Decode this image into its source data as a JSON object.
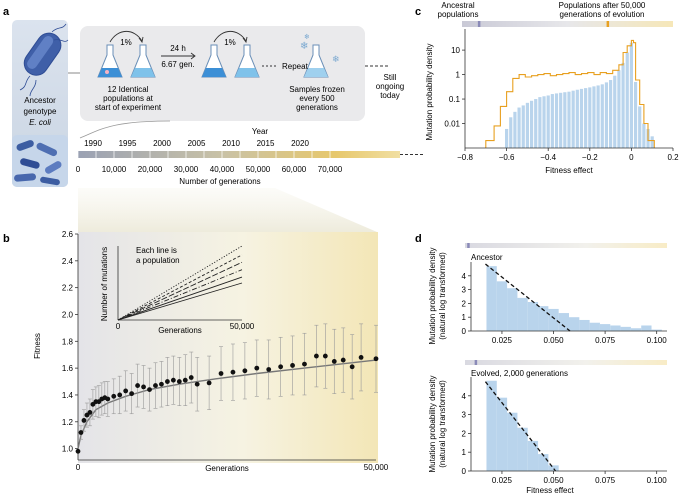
{
  "panels": {
    "a": {
      "label": "a",
      "ancestor_label_1": "Ancestor",
      "ancestor_label_2": "genotype",
      "ancestor_label_3": "E. coli",
      "transfer_percent_1": "1%",
      "transfer_percent_2": "1%",
      "time": "24 h",
      "generations_per_day": "6.67 gen.",
      "populations_1": "12 Identical",
      "populations_2": "populations at",
      "populations_3": "start of experiment",
      "repeat": "Repeat",
      "samples_1": "Samples frozen",
      "samples_2": "every 500",
      "samples_3": "generations",
      "ongoing_1": "Still",
      "ongoing_2": "ongoing",
      "ongoing_3": "today",
      "timeline": {
        "year_title": "Year",
        "years": [
          "1990",
          "1995",
          "2000",
          "2005",
          "2010",
          "2015",
          "2020"
        ],
        "generations": [
          "0",
          "10,000",
          "20,000",
          "30,000",
          "40,000",
          "50,000",
          "60,000",
          "70,000"
        ],
        "xlabel": "Number of generations"
      }
    },
    "c": {
      "label": "c",
      "header_left_1": "Ancestral",
      "header_left_2": "populations",
      "header_right_1": "Populations after 50,000",
      "header_right_2": "generations of evolution"
    },
    "d": {
      "label": "d",
      "top_title": "Ancestor",
      "bottom_title": "Evolved, 2,000 generations"
    },
    "b": {
      "label": "b",
      "inset_note_1": "Each line is",
      "inset_note_2": "a population"
    }
  },
  "colors": {
    "accent_orange": "#e8a020",
    "hist_blue": "#b9d4ec",
    "dot": "#111111",
    "errorbar": "#9a9a9a"
  },
  "chart_data": [
    {
      "id": "b-main",
      "type": "scatter",
      "title": "",
      "xlabel": "Generations",
      "ylabel": "Fitness",
      "xlim": [
        0,
        50000
      ],
      "ylim": [
        0.93,
        2.6
      ],
      "x_ticks": [
        "0",
        "50,000"
      ],
      "y_ticks": [
        "1.0",
        "1.2",
        "1.4",
        "1.6",
        "1.8",
        "2.0",
        "2.2",
        "2.4",
        "2.6"
      ],
      "y_tick_values": [
        1.0,
        1.2,
        1.4,
        1.6,
        1.8,
        2.0,
        2.2,
        2.4,
        2.6
      ],
      "points": [
        [
          0,
          0.98
        ],
        [
          500,
          1.12
        ],
        [
          1000,
          1.21
        ],
        [
          1500,
          1.25
        ],
        [
          2000,
          1.27
        ],
        [
          2500,
          1.33
        ],
        [
          3000,
          1.35
        ],
        [
          3500,
          1.35
        ],
        [
          4000,
          1.37
        ],
        [
          4500,
          1.38
        ],
        [
          5000,
          1.37
        ],
        [
          6000,
          1.39
        ],
        [
          7000,
          1.4
        ],
        [
          8000,
          1.43
        ],
        [
          9000,
          1.41
        ],
        [
          10000,
          1.47
        ],
        [
          11000,
          1.46
        ],
        [
          12000,
          1.44
        ],
        [
          13000,
          1.47
        ],
        [
          14000,
          1.48
        ],
        [
          15000,
          1.5
        ],
        [
          16000,
          1.51
        ],
        [
          17000,
          1.5
        ],
        [
          18000,
          1.51
        ],
        [
          19000,
          1.53
        ],
        [
          20000,
          1.48
        ],
        [
          22000,
          1.49
        ],
        [
          24000,
          1.56
        ],
        [
          26000,
          1.57
        ],
        [
          28000,
          1.58
        ],
        [
          30000,
          1.6
        ],
        [
          32000,
          1.59
        ],
        [
          34000,
          1.61
        ],
        [
          36000,
          1.62
        ],
        [
          38000,
          1.63
        ],
        [
          40000,
          1.69
        ],
        [
          41500,
          1.69
        ],
        [
          43000,
          1.65
        ],
        [
          44500,
          1.66
        ],
        [
          46000,
          1.61
        ],
        [
          47500,
          1.68
        ],
        [
          50000,
          1.67
        ]
      ],
      "error_halfwidth": [
        0.0,
        0.05,
        0.08,
        0.09,
        0.1,
        0.11,
        0.11,
        0.12,
        0.12,
        0.12,
        0.13,
        0.13,
        0.14,
        0.15,
        0.15,
        0.16,
        0.16,
        0.16,
        0.17,
        0.17,
        0.18,
        0.18,
        0.18,
        0.19,
        0.19,
        0.2,
        0.2,
        0.2,
        0.21,
        0.21,
        0.21,
        0.22,
        0.22,
        0.22,
        0.23,
        0.23,
        0.24,
        0.24,
        0.24,
        0.24,
        0.25,
        0.25
      ],
      "fit_curve": [
        [
          0,
          1.0
        ],
        [
          500,
          1.1
        ],
        [
          1500,
          1.2
        ],
        [
          3000,
          1.29
        ],
        [
          5000,
          1.34
        ],
        [
          8000,
          1.39
        ],
        [
          12000,
          1.44
        ],
        [
          17000,
          1.48
        ],
        [
          23000,
          1.52
        ],
        [
          30000,
          1.56
        ],
        [
          38000,
          1.6
        ],
        [
          44000,
          1.63
        ],
        [
          50000,
          1.66
        ]
      ]
    },
    {
      "id": "b-inset",
      "type": "line",
      "xlabel": "Generations",
      "ylabel": "Number of mutations",
      "xlim": [
        0,
        50000
      ],
      "ylim": [
        0,
        1
      ],
      "x_ticks": [
        "0",
        "50,000"
      ],
      "series": [
        {
          "name": "population 1",
          "style": "dotted",
          "values": [
            [
              0,
              0
            ],
            [
              50000,
              1.0
            ]
          ]
        },
        {
          "name": "population 2",
          "style": "dashed",
          "values": [
            [
              0,
              0
            ],
            [
              50000,
              0.88
            ]
          ]
        },
        {
          "name": "population 3",
          "style": "longdash",
          "values": [
            [
              0,
              0
            ],
            [
              50000,
              0.78
            ]
          ]
        },
        {
          "name": "population 4",
          "style": "dashdot",
          "values": [
            [
              0,
              0
            ],
            [
              50000,
              0.68
            ]
          ]
        },
        {
          "name": "population 5",
          "style": "solid",
          "values": [
            [
              0,
              0
            ],
            [
              50000,
              0.58
            ]
          ]
        },
        {
          "name": "population 6",
          "style": "solid",
          "values": [
            [
              0,
              0
            ],
            [
              50000,
              0.5
            ]
          ]
        }
      ]
    },
    {
      "id": "c-hist",
      "type": "bar",
      "title": "",
      "xlabel": "Fitness effect",
      "ylabel": "Mutation probability density",
      "xlim": [
        -0.8,
        0.2
      ],
      "ylim_log": [
        0.001,
        50
      ],
      "x_ticks": [
        "−0.8",
        "−0.6",
        "−0.4",
        "−0.2",
        "0",
        "0.2"
      ],
      "x_tick_values": [
        -0.8,
        -0.6,
        -0.4,
        -0.2,
        0,
        0.2
      ],
      "y_ticks": [
        "10",
        "1",
        "0.1",
        "0.01"
      ],
      "y_tick_values": [
        10,
        1,
        0.1,
        0.01
      ],
      "ancestor_centers": [
        -0.6,
        -0.58,
        -0.56,
        -0.54,
        -0.52,
        -0.5,
        -0.48,
        -0.46,
        -0.44,
        -0.42,
        -0.4,
        -0.38,
        -0.36,
        -0.34,
        -0.32,
        -0.3,
        -0.28,
        -0.26,
        -0.24,
        -0.22,
        -0.2,
        -0.18,
        -0.16,
        -0.14,
        -0.12,
        -0.1,
        -0.08,
        -0.06,
        -0.04,
        -0.02,
        0.0,
        0.02,
        0.04,
        0.06,
        0.08,
        0.1
      ],
      "ancestor_values": [
        0.006,
        0.018,
        0.03,
        0.045,
        0.055,
        0.07,
        0.085,
        0.1,
        0.12,
        0.13,
        0.14,
        0.16,
        0.17,
        0.18,
        0.19,
        0.2,
        0.22,
        0.24,
        0.26,
        0.28,
        0.3,
        0.33,
        0.36,
        0.4,
        0.48,
        0.6,
        0.9,
        1.5,
        3.0,
        8.0,
        20.0,
        0.5,
        0.05,
        0.01,
        0.006,
        0.003
      ],
      "evolved_edges": [
        -0.7,
        -0.66,
        -0.63,
        -0.6,
        -0.57,
        -0.54,
        -0.51,
        -0.48,
        -0.45,
        -0.42,
        -0.39,
        -0.36,
        -0.33,
        -0.3,
        -0.27,
        -0.24,
        -0.21,
        -0.18,
        -0.15,
        -0.12,
        -0.09,
        -0.06,
        -0.04,
        -0.02,
        0.0,
        0.01,
        0.02,
        0.04,
        0.06,
        0.08,
        0.11
      ],
      "evolved_values": [
        0.002,
        0.008,
        0.05,
        0.2,
        0.7,
        1.0,
        0.8,
        0.9,
        1.0,
        1.1,
        0.9,
        1.0,
        1.1,
        1.2,
        1.0,
        1.1,
        1.2,
        1.0,
        1.2,
        1.1,
        1.5,
        2.5,
        8.0,
        15.0,
        25.0,
        20.0,
        0.6,
        0.06,
        0.01,
        0.002
      ],
      "header_markers": [
        -0.72,
        -0.11
      ]
    },
    {
      "id": "d-top",
      "type": "bar",
      "title": "Ancestor",
      "xlabel": "",
      "ylabel": "Mutation probability density (natural log transformed)",
      "xlim": [
        0.01,
        0.105
      ],
      "ylim": [
        0,
        5
      ],
      "x_ticks": [
        "0.025",
        "0.050",
        "0.075",
        "0.100"
      ],
      "x_tick_values": [
        0.025,
        0.05,
        0.075,
        0.1
      ],
      "y_ticks": [
        "0",
        "1",
        "2",
        "3",
        "4"
      ],
      "y_tick_values": [
        0,
        1,
        2,
        3,
        4
      ],
      "bin_edges": [
        0.0175,
        0.0225,
        0.0275,
        0.0325,
        0.0375,
        0.0425,
        0.0475,
        0.0525,
        0.0575,
        0.0625,
        0.0675,
        0.0725,
        0.0775,
        0.0825,
        0.0875,
        0.0925,
        0.0975,
        0.1025
      ],
      "values": [
        4.7,
        3.6,
        3.1,
        2.4,
        2.1,
        1.8,
        1.6,
        1.3,
        1.0,
        0.8,
        0.6,
        0.5,
        0.4,
        0.3,
        0.2,
        0.4,
        0.1
      ],
      "fit_line": [
        [
          0.017,
          4.85
        ],
        [
          0.058,
          0
        ]
      ],
      "header_marker": 0.0115
    },
    {
      "id": "d-bottom",
      "type": "bar",
      "title": "Evolved, 2,000 generations",
      "xlabel": "Fitness effect",
      "ylabel": "Mutation probability density (natural log transformed)",
      "xlim": [
        0.01,
        0.105
      ],
      "ylim": [
        0,
        5
      ],
      "x_ticks": [
        "0.025",
        "0.050",
        "0.075",
        "0.100"
      ],
      "x_tick_values": [
        0.025,
        0.05,
        0.075,
        0.1
      ],
      "y_ticks": [
        "0",
        "1",
        "2",
        "3",
        "4"
      ],
      "y_tick_values": [
        0,
        1,
        2,
        3,
        4
      ],
      "bin_edges": [
        0.0175,
        0.0225,
        0.0275,
        0.0325,
        0.0375,
        0.0425,
        0.0475,
        0.0525
      ],
      "values": [
        4.8,
        3.9,
        3.1,
        2.3,
        1.6,
        0.9,
        0.3
      ],
      "fit_line": [
        [
          0.017,
          4.75
        ],
        [
          0.051,
          0
        ]
      ],
      "header_marker": 0.015
    }
  ]
}
